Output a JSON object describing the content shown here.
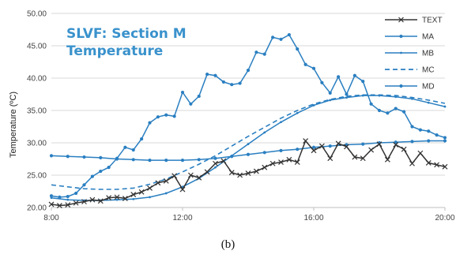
{
  "caption": "(b)",
  "chart_data": {
    "type": "line",
    "title_lines": [
      "SLVF: Section M",
      "Temperature"
    ],
    "title_color": "#3a92cc",
    "ylabel": "Temperature (ºC)",
    "xlabel": "",
    "xlim": [
      8,
      20
    ],
    "ylim": [
      20,
      50
    ],
    "x_ticks": [
      8,
      12,
      16,
      20
    ],
    "x_tick_labels": [
      "8:00",
      "12:00",
      "16:00",
      "20:00"
    ],
    "y_ticks": [
      20,
      25,
      30,
      35,
      40,
      45,
      50
    ],
    "y_tick_labels": [
      "20.00",
      "25.00",
      "30.00",
      "35.00",
      "40.00",
      "45.00",
      "50.00"
    ],
    "grid": "horizontal",
    "legend_position": "top-right",
    "series": [
      {
        "name": "TEXT",
        "color": "#333333",
        "marker": "x",
        "dash": "none",
        "x": [
          8.0,
          8.25,
          8.5,
          8.75,
          9.0,
          9.25,
          9.5,
          9.75,
          10.0,
          10.25,
          10.5,
          10.75,
          11.0,
          11.25,
          11.5,
          11.75,
          12.0,
          12.25,
          12.5,
          12.75,
          13.0,
          13.25,
          13.5,
          13.75,
          14.0,
          14.25,
          14.5,
          14.75,
          15.0,
          15.25,
          15.5,
          15.75,
          16.0,
          16.25,
          16.5,
          16.75,
          17.0,
          17.25,
          17.5,
          17.75,
          18.0,
          18.25,
          18.5,
          18.75,
          19.0,
          19.25,
          19.5,
          19.75,
          20.0
        ],
        "y": [
          20.5,
          20.3,
          20.4,
          20.7,
          20.9,
          21.2,
          21.0,
          21.5,
          21.6,
          21.4,
          22.0,
          22.4,
          23.0,
          23.8,
          24.1,
          24.9,
          22.8,
          25.0,
          24.6,
          25.5,
          26.8,
          27.2,
          25.4,
          25.0,
          25.3,
          25.6,
          26.2,
          26.8,
          27.0,
          27.4,
          27.0,
          30.3,
          28.8,
          29.5,
          27.6,
          29.9,
          29.4,
          27.8,
          27.6,
          28.9,
          29.8,
          27.4,
          29.7,
          29.0,
          26.8,
          28.4,
          26.9,
          26.6,
          26.3
        ]
      },
      {
        "name": "MA",
        "color": "#2a7fc1",
        "marker": "dot",
        "dash": "none",
        "x": [
          8.0,
          8.25,
          8.5,
          8.75,
          9.0,
          9.25,
          9.5,
          9.75,
          10.0,
          10.25,
          10.5,
          10.75,
          11.0,
          11.25,
          11.5,
          11.75,
          12.0,
          12.25,
          12.5,
          12.75,
          13.0,
          13.25,
          13.5,
          13.75,
          14.0,
          14.25,
          14.5,
          14.75,
          15.0,
          15.25,
          15.5,
          15.75,
          16.0,
          16.25,
          16.5,
          16.75,
          17.0,
          17.25,
          17.5,
          17.75,
          18.0,
          18.25,
          18.5,
          18.75,
          19.0,
          19.25,
          19.5,
          19.75,
          20.0
        ],
        "y": [
          21.8,
          21.6,
          21.7,
          22.2,
          23.5,
          24.8,
          25.6,
          26.2,
          27.6,
          29.3,
          28.9,
          30.6,
          33.1,
          34.0,
          34.3,
          34.1,
          37.8,
          36.0,
          37.2,
          40.6,
          40.4,
          39.4,
          39.0,
          39.2,
          41.2,
          44.0,
          43.7,
          46.3,
          46.0,
          46.7,
          44.5,
          42.1,
          41.5,
          39.3,
          37.7,
          40.2,
          37.5,
          40.4,
          39.5,
          36.0,
          35.0,
          34.6,
          35.3,
          34.8,
          32.5,
          32.0,
          31.8,
          31.2,
          30.8
        ]
      },
      {
        "name": "MB",
        "color": "#2a7fc1",
        "marker": "small-dot",
        "dash": "none",
        "x": [
          8.0,
          8.5,
          9.0,
          9.5,
          10.0,
          10.5,
          11.0,
          11.5,
          12.0,
          12.5,
          13.0,
          13.5,
          14.0,
          14.5,
          15.0,
          15.5,
          16.0,
          16.5,
          17.0,
          17.5,
          18.0,
          18.5,
          19.0,
          19.5,
          20.0
        ],
        "y": [
          21.5,
          21.2,
          21.1,
          21.1,
          21.2,
          21.3,
          21.6,
          22.2,
          23.2,
          24.5,
          26.2,
          28.0,
          29.8,
          31.6,
          33.2,
          34.6,
          35.8,
          36.6,
          37.0,
          37.3,
          37.3,
          37.1,
          36.8,
          36.2,
          35.6
        ]
      },
      {
        "name": "MC",
        "color": "#2a7fc1",
        "marker": "none",
        "dash": "dashed",
        "x": [
          8.0,
          8.5,
          9.0,
          9.5,
          10.0,
          10.5,
          11.0,
          11.5,
          12.0,
          12.5,
          13.0,
          13.5,
          14.0,
          14.5,
          15.0,
          15.5,
          16.0,
          16.5,
          17.0,
          17.5,
          18.0,
          18.5,
          19.0,
          19.5,
          20.0
        ],
        "y": [
          23.5,
          23.2,
          22.9,
          22.8,
          22.8,
          23.0,
          23.6,
          24.4,
          25.5,
          26.7,
          28.0,
          29.5,
          31.0,
          32.4,
          33.8,
          35.0,
          36.0,
          36.7,
          37.2,
          37.4,
          37.4,
          37.3,
          37.0,
          36.6,
          36.1
        ]
      },
      {
        "name": "MD",
        "color": "#2a7fc1",
        "marker": "dot",
        "dash": "none",
        "x": [
          8.0,
          8.5,
          9.0,
          9.5,
          10.0,
          10.5,
          11.0,
          11.5,
          12.0,
          12.5,
          13.0,
          13.5,
          14.0,
          14.5,
          15.0,
          15.5,
          16.0,
          16.5,
          17.0,
          17.5,
          18.0,
          18.5,
          19.0,
          19.5,
          20.0
        ],
        "y": [
          28.0,
          27.9,
          27.8,
          27.7,
          27.5,
          27.4,
          27.3,
          27.3,
          27.3,
          27.4,
          27.6,
          27.9,
          28.2,
          28.5,
          28.8,
          29.0,
          29.3,
          29.5,
          29.7,
          29.8,
          30.0,
          30.1,
          30.2,
          30.3,
          30.3
        ]
      }
    ]
  }
}
